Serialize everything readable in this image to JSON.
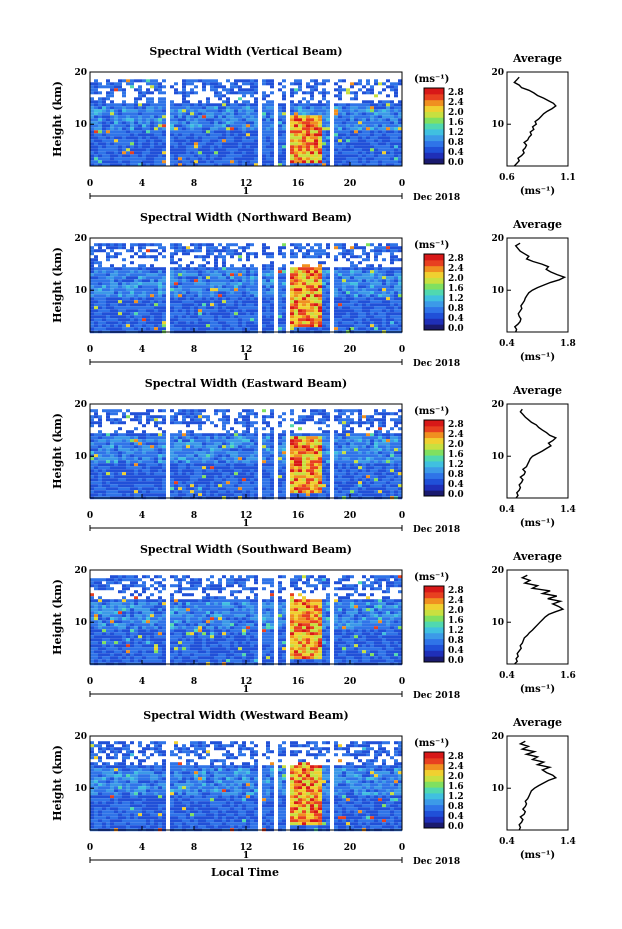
{
  "chart_data": [
    {
      "type": "heatmap",
      "title": "Spectral Width (Vertical Beam)",
      "ylabel": "Height (km)",
      "ylim": [
        2,
        20
      ],
      "yticks": [
        "20",
        "10"
      ],
      "xticks": [
        "0",
        "4",
        "8",
        "12",
        "16",
        "20",
        "0"
      ],
      "date_tick": "1",
      "date_label": "Dec 2018",
      "colorbar": {
        "unit": "(ms⁻¹)",
        "ticks": [
          "2.8",
          "2.4",
          "2.0",
          "1.6",
          "1.2",
          "0.8",
          "0.4",
          "0.0"
        ]
      },
      "gap_hours": [
        [
          5.7,
          5.9
        ],
        [
          12.8,
          13.2
        ],
        [
          13.9,
          14.4
        ],
        [
          14.9,
          15.2
        ],
        [
          18.2,
          18.5
        ]
      ],
      "top_fill_km": 18.6,
      "hotspot": {
        "x": [
          15.2,
          17.8
        ],
        "y": [
          3,
          12
        ]
      },
      "profile": {
        "title": "Average",
        "xlabel": "(ms⁻¹)",
        "xlim": [
          0.6,
          1.1
        ],
        "xticks": [
          "0.6",
          "1.1"
        ],
        "yticks": [
          "20",
          "10"
        ],
        "heights_km": [
          2,
          2.5,
          3,
          3.5,
          4,
          4.5,
          5,
          5.5,
          6,
          6.5,
          7,
          7.5,
          8,
          8.5,
          9,
          9.5,
          10,
          10.5,
          11,
          11.5,
          12,
          12.5,
          13,
          13.5,
          14,
          14.5,
          15,
          15.5,
          16,
          16.5,
          17,
          17.5,
          18,
          18.5,
          19
        ],
        "values": [
          0.66,
          0.68,
          0.7,
          0.69,
          0.72,
          0.74,
          0.73,
          0.75,
          0.76,
          0.74,
          0.77,
          0.78,
          0.8,
          0.79,
          0.82,
          0.81,
          0.84,
          0.83,
          0.86,
          0.88,
          0.9,
          0.93,
          0.97,
          1.0,
          0.98,
          0.94,
          0.9,
          0.85,
          0.82,
          0.78,
          0.72,
          0.7,
          0.66,
          0.68,
          0.7
        ]
      }
    },
    {
      "type": "heatmap",
      "title": "Spectral Width (Northward Beam)",
      "ylabel": "Height (km)",
      "ylim": [
        2,
        20
      ],
      "yticks": [
        "20",
        "10"
      ],
      "xticks": [
        "0",
        "4",
        "8",
        "12",
        "16",
        "20",
        "0"
      ],
      "date_tick": "1",
      "date_label": "Dec 2018",
      "colorbar": {
        "unit": "(ms⁻¹)",
        "ticks": [
          "2.8",
          "2.4",
          "2.0",
          "1.6",
          "1.2",
          "0.8",
          "0.4",
          "0.0"
        ]
      },
      "gap_hours": [
        [
          5.7,
          5.9
        ],
        [
          12.8,
          13.2
        ],
        [
          13.9,
          14.4
        ],
        [
          14.9,
          15.2
        ],
        [
          18.2,
          18.5
        ]
      ],
      "top_fill_km": 19.0,
      "hotspot": {
        "x": [
          15.2,
          17.8
        ],
        "y": [
          3,
          15
        ]
      },
      "profile": {
        "title": "Average",
        "xlabel": "(ms⁻¹)",
        "xlim": [
          0.4,
          1.8
        ],
        "xticks": [
          "0.4",
          "1.8"
        ],
        "yticks": [
          "20",
          "10"
        ],
        "heights_km": [
          2,
          2.5,
          3,
          3.5,
          4,
          4.5,
          5,
          5.5,
          6,
          6.5,
          7,
          7.5,
          8,
          8.5,
          9,
          9.5,
          10,
          10.5,
          11,
          11.5,
          12,
          12.5,
          13,
          13.5,
          14,
          14.5,
          15,
          15.5,
          16,
          16.5,
          17,
          17.5,
          18,
          18.5,
          19
        ],
        "values": [
          0.6,
          0.62,
          0.58,
          0.65,
          0.7,
          0.72,
          0.68,
          0.66,
          0.7,
          0.74,
          0.72,
          0.76,
          0.8,
          0.82,
          0.86,
          0.9,
          0.98,
          1.1,
          1.25,
          1.4,
          1.6,
          1.72,
          1.55,
          1.4,
          1.3,
          1.35,
          1.2,
          1.0,
          0.85,
          0.9,
          0.8,
          0.7,
          0.65,
          0.6,
          0.7
        ]
      }
    },
    {
      "type": "heatmap",
      "title": "Spectral Width (Eastward Beam)",
      "ylabel": "Height (km)",
      "ylim": [
        2,
        20
      ],
      "yticks": [
        "20",
        "10"
      ],
      "xticks": [
        "0",
        "4",
        "8",
        "12",
        "16",
        "20",
        "0"
      ],
      "date_tick": "1",
      "date_label": "Dec 2018",
      "colorbar": {
        "unit": "(ms⁻¹)",
        "ticks": [
          "2.8",
          "2.4",
          "2.0",
          "1.6",
          "1.2",
          "0.8",
          "0.4",
          "0.0"
        ]
      },
      "gap_hours": [
        [
          5.7,
          5.9
        ],
        [
          12.8,
          13.2
        ],
        [
          13.9,
          14.4
        ],
        [
          14.9,
          15.2
        ],
        [
          18.2,
          18.5
        ]
      ],
      "top_fill_km": 19.0,
      "hotspot": {
        "x": [
          15.2,
          17.8
        ],
        "y": [
          3,
          14
        ]
      },
      "profile": {
        "title": "Average",
        "xlabel": "(ms⁻¹)",
        "xlim": [
          0.4,
          1.4
        ],
        "xticks": [
          "0.4",
          "1.4"
        ],
        "heights_km": [
          2,
          2.5,
          3,
          3.5,
          4,
          4.5,
          5,
          5.5,
          6,
          6.5,
          7,
          7.5,
          8,
          8.5,
          9,
          9.5,
          10,
          10.5,
          11,
          11.5,
          12,
          12.5,
          13,
          13.5,
          14,
          14.5,
          15,
          15.5,
          16,
          16.5,
          17,
          17.5,
          18,
          18.5,
          19
        ],
        "yticks": [
          "20",
          "10"
        ],
        "values": [
          0.55,
          0.58,
          0.56,
          0.6,
          0.62,
          0.6,
          0.64,
          0.66,
          0.62,
          0.68,
          0.7,
          0.66,
          0.72,
          0.74,
          0.76,
          0.78,
          0.82,
          0.9,
          0.98,
          1.05,
          1.12,
          1.08,
          1.15,
          1.2,
          1.1,
          1.05,
          0.98,
          0.92,
          0.88,
          0.8,
          0.75,
          0.7,
          0.66,
          0.62,
          0.65
        ]
      }
    },
    {
      "type": "heatmap",
      "title": "Spectral Width (Southward Beam)",
      "ylabel": "Height (km)",
      "ylim": [
        2,
        20
      ],
      "yticks": [
        "20",
        "10"
      ],
      "xticks": [
        "0",
        "4",
        "8",
        "12",
        "16",
        "20",
        "0"
      ],
      "date_tick": "1",
      "date_label": "Dec 2018",
      "colorbar": {
        "unit": "(ms⁻¹)",
        "ticks": [
          "2.8",
          "2.4",
          "2.0",
          "1.6",
          "1.2",
          "0.8",
          "0.4",
          "0.0"
        ]
      },
      "gap_hours": [
        [
          5.7,
          5.9
        ],
        [
          12.8,
          13.2
        ],
        [
          13.9,
          14.4
        ],
        [
          14.9,
          15.2
        ],
        [
          18.2,
          18.5
        ]
      ],
      "top_fill_km": 19.0,
      "hotspot": {
        "x": [
          15.2,
          17.8
        ],
        "y": [
          3,
          16
        ]
      },
      "profile": {
        "title": "Average",
        "xlabel": "(ms⁻¹)",
        "xlim": [
          0.4,
          1.6
        ],
        "xticks": [
          "0.4",
          "1.6"
        ],
        "yticks": [
          "20",
          "10"
        ],
        "heights_km": [
          2,
          2.5,
          3,
          3.5,
          4,
          4.5,
          5,
          5.5,
          6,
          6.5,
          7,
          7.5,
          8,
          8.5,
          9,
          9.5,
          10,
          10.5,
          11,
          11.5,
          12,
          12.5,
          13,
          13.5,
          14,
          14.5,
          15,
          15.5,
          16,
          16.5,
          17,
          17.5,
          18,
          18.5,
          19
        ],
        "values": [
          0.55,
          0.6,
          0.58,
          0.62,
          0.6,
          0.64,
          0.68,
          0.66,
          0.7,
          0.72,
          0.74,
          0.8,
          0.84,
          0.9,
          0.95,
          1.0,
          1.05,
          1.1,
          1.15,
          1.22,
          1.35,
          1.5,
          1.42,
          1.3,
          1.45,
          1.2,
          1.38,
          1.1,
          1.25,
          0.9,
          1.0,
          0.75,
          0.85,
          0.7,
          0.8
        ]
      }
    },
    {
      "type": "heatmap",
      "title": "Spectral Width (Westward Beam)",
      "ylabel": "Height (km)",
      "ylim": [
        2,
        20
      ],
      "yticks": [
        "20",
        "10"
      ],
      "xticks": [
        "0",
        "4",
        "8",
        "12",
        "16",
        "20",
        "0"
      ],
      "date_tick": "1",
      "date_label": "Dec 2018",
      "colorbar": {
        "unit": "(ms⁻¹)",
        "ticks": [
          "2.8",
          "2.4",
          "2.0",
          "1.6",
          "1.2",
          "0.8",
          "0.4",
          "0.0"
        ]
      },
      "gap_hours": [
        [
          5.7,
          5.9
        ],
        [
          12.8,
          13.2
        ],
        [
          13.9,
          14.4
        ],
        [
          14.9,
          15.2
        ],
        [
          18.2,
          18.5
        ]
      ],
      "top_fill_km": 19.0,
      "hotspot": {
        "x": [
          15.2,
          17.8
        ],
        "y": [
          3,
          15
        ]
      },
      "profile": {
        "title": "Average",
        "xlabel": "(ms⁻¹)",
        "xlim": [
          0.4,
          1.4
        ],
        "xticks": [
          "0.4",
          "1.4"
        ],
        "yticks": [
          "20",
          "10"
        ],
        "heights_km": [
          2,
          2.5,
          3,
          3.5,
          4,
          4.5,
          5,
          5.5,
          6,
          6.5,
          7,
          7.5,
          8,
          8.5,
          9,
          9.5,
          10,
          10.5,
          11,
          11.5,
          12,
          12.5,
          13,
          13.5,
          14,
          14.5,
          15,
          15.5,
          16,
          16.5,
          17,
          17.5,
          18,
          18.5,
          19
        ],
        "values": [
          0.6,
          0.62,
          0.6,
          0.64,
          0.66,
          0.62,
          0.68,
          0.7,
          0.66,
          0.7,
          0.72,
          0.7,
          0.74,
          0.76,
          0.78,
          0.8,
          0.85,
          0.92,
          1.0,
          1.08,
          1.2,
          1.15,
          1.05,
          0.98,
          1.1,
          0.9,
          1.0,
          0.82,
          0.9,
          0.72,
          0.85,
          0.65,
          0.75,
          0.62,
          0.7
        ]
      }
    }
  ],
  "xtitle": "Local Time",
  "colors": {
    "white_gap": "#ffffff",
    "axis": "#000000"
  }
}
